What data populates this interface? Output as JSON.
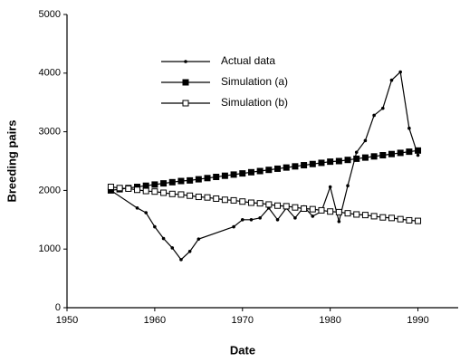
{
  "chart_data": {
    "type": "line",
    "xlabel": "Date",
    "ylabel": "Breeding pairs",
    "xlim": [
      1950,
      1995
    ],
    "xticks": [
      1950,
      1960,
      1970,
      1980,
      1990
    ],
    "ylim": [
      0,
      5000
    ],
    "yticks": [
      0,
      1000,
      2000,
      3000,
      4000,
      5000
    ],
    "grid": false,
    "legend": "upper center",
    "series": [
      {
        "name": "Actual data",
        "color": "#000000",
        "marker": "dot",
        "x": [
          1955,
          1958,
          1959,
          1960,
          1961,
          1962,
          1963,
          1964,
          1965,
          1969,
          1970,
          1971,
          1972,
          1973,
          1974,
          1975,
          1976,
          1977,
          1978,
          1979,
          1980,
          1981,
          1982,
          1983,
          1984,
          1985,
          1986,
          1987,
          1988,
          1989,
          1990
        ],
        "values": [
          2000,
          1700,
          1620,
          1380,
          1180,
          1020,
          820,
          960,
          1170,
          1380,
          1500,
          1500,
          1530,
          1700,
          1500,
          1700,
          1530,
          1720,
          1560,
          1640,
          2060,
          1470,
          2080,
          2650,
          2850,
          3280,
          3400,
          3880,
          4020,
          3060,
          2600
        ]
      },
      {
        "name": "Simulation (a)",
        "color": "#000000",
        "marker": "filled-square",
        "x": [
          1955,
          1956,
          1957,
          1958,
          1959,
          1960,
          1961,
          1962,
          1963,
          1964,
          1965,
          1966,
          1967,
          1968,
          1969,
          1970,
          1971,
          1972,
          1973,
          1974,
          1975,
          1976,
          1977,
          1978,
          1979,
          1980,
          1981,
          1982,
          1983,
          1984,
          1985,
          1986,
          1987,
          1988,
          1989,
          1990
        ],
        "values": [
          2000,
          2020,
          2040,
          2060,
          2080,
          2100,
          2120,
          2140,
          2160,
          2170,
          2190,
          2210,
          2230,
          2250,
          2270,
          2290,
          2310,
          2330,
          2350,
          2370,
          2390,
          2410,
          2430,
          2450,
          2470,
          2490,
          2500,
          2520,
          2540,
          2560,
          2580,
          2600,
          2620,
          2640,
          2660,
          2680
        ]
      },
      {
        "name": "Simulation (b)",
        "color": "#000000",
        "marker": "open-square",
        "x": [
          1955,
          1956,
          1957,
          1958,
          1959,
          1960,
          1961,
          1962,
          1963,
          1964,
          1965,
          1966,
          1967,
          1968,
          1969,
          1970,
          1971,
          1972,
          1973,
          1974,
          1975,
          1976,
          1977,
          1978,
          1979,
          1980,
          1981,
          1982,
          1983,
          1984,
          1985,
          1986,
          1987,
          1988,
          1989,
          1990
        ],
        "values": [
          2060,
          2040,
          2030,
          2010,
          1990,
          1980,
          1960,
          1940,
          1930,
          1910,
          1890,
          1880,
          1860,
          1840,
          1830,
          1810,
          1790,
          1780,
          1760,
          1740,
          1730,
          1710,
          1690,
          1680,
          1660,
          1640,
          1630,
          1610,
          1590,
          1580,
          1560,
          1540,
          1530,
          1510,
          1490,
          1480
        ]
      }
    ]
  }
}
